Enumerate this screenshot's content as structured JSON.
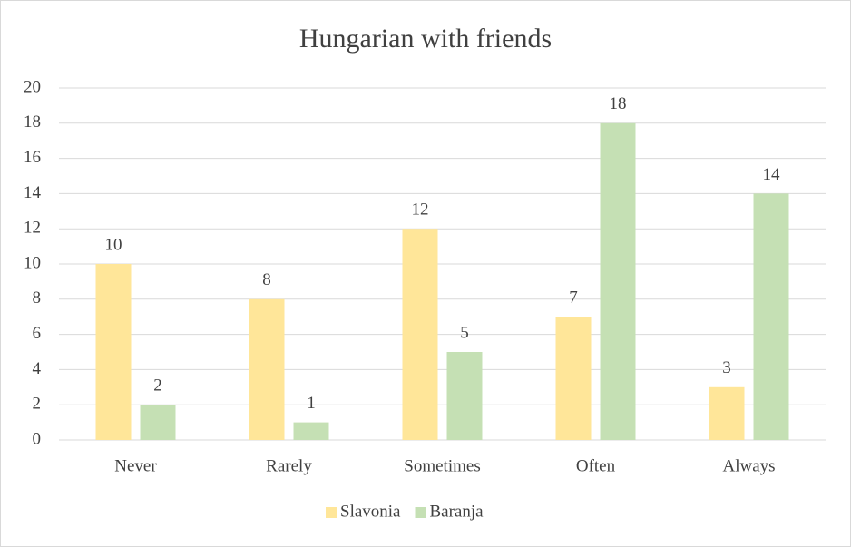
{
  "chart_data": {
    "type": "bar",
    "title": "Hungarian with friends",
    "categories": [
      "Never",
      "Rarely",
      "Sometimes",
      "Often",
      "Always"
    ],
    "series": [
      {
        "name": "Slavonia",
        "color": "#ffe699",
        "values": [
          10,
          8,
          12,
          7,
          3
        ]
      },
      {
        "name": "Baranja",
        "color": "#c5e0b4",
        "values": [
          2,
          1,
          5,
          18,
          14
        ]
      }
    ],
    "ylim": [
      0,
      20
    ],
    "yticks": [
      0,
      2,
      4,
      6,
      8,
      10,
      12,
      14,
      16,
      18,
      20
    ],
    "grid": true,
    "legend": "bottom",
    "data_labels": true
  }
}
